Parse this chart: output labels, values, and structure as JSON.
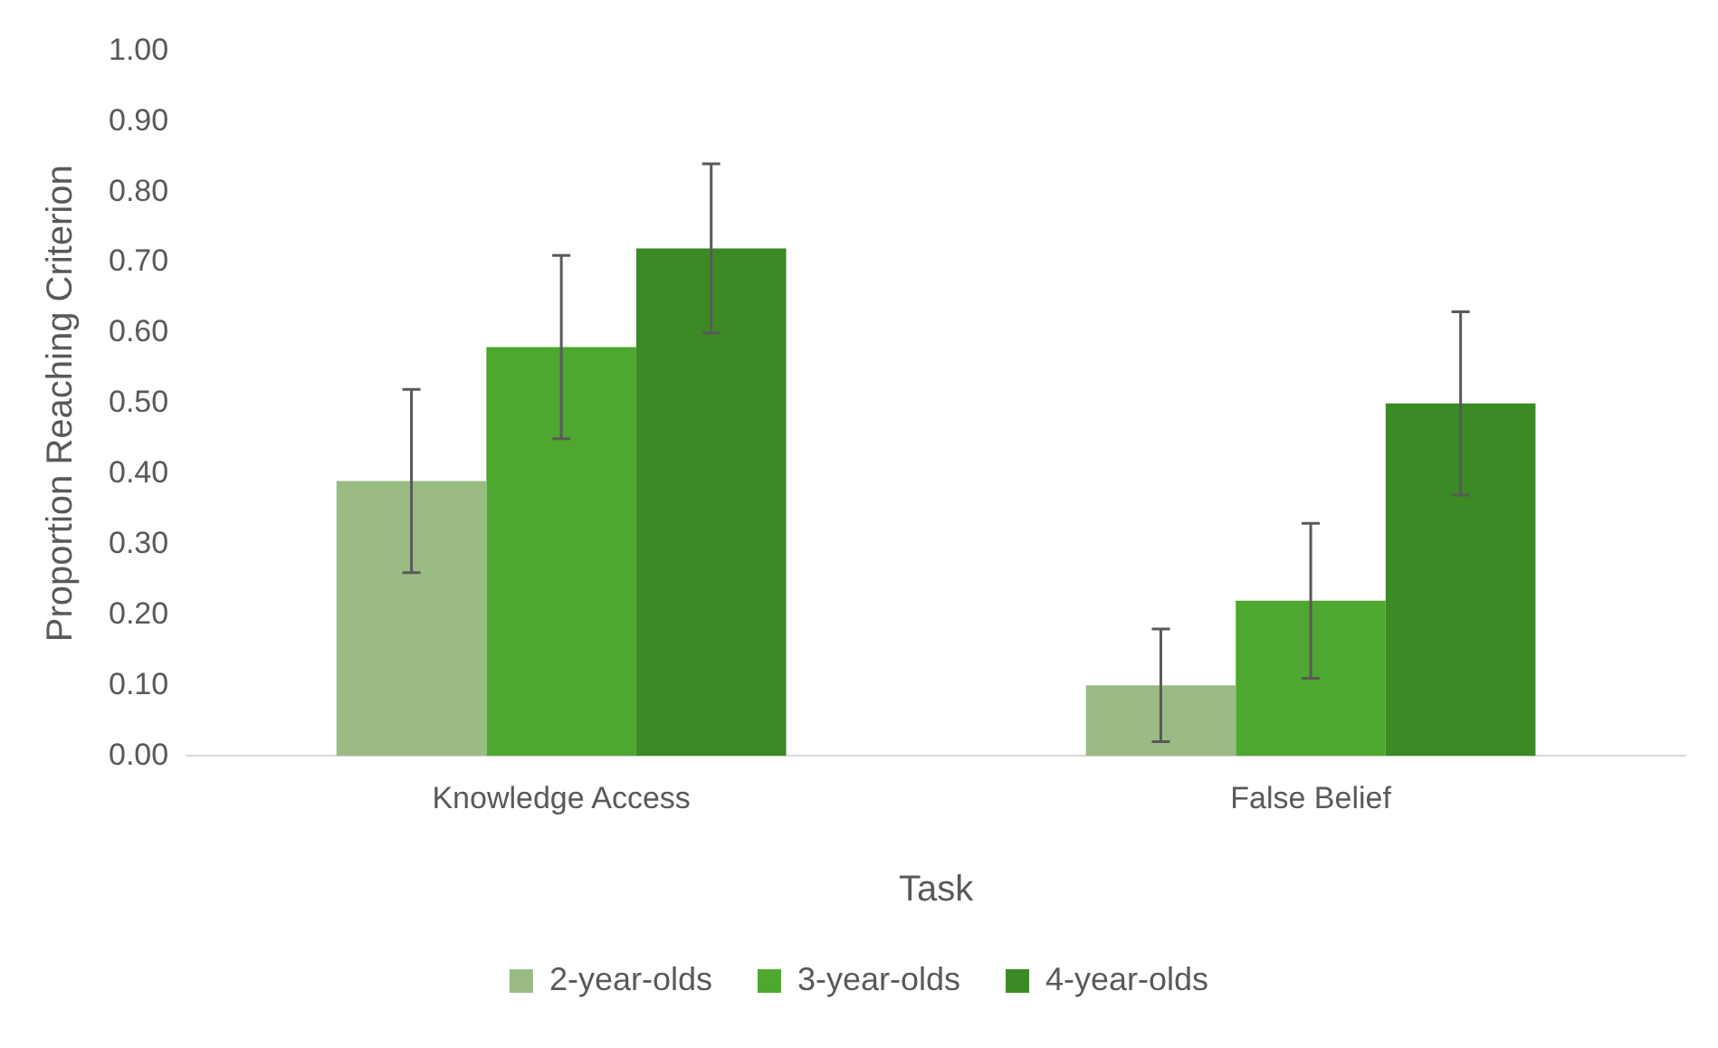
{
  "chart_data": {
    "type": "bar",
    "xlabel": "Task",
    "ylabel": "Proportion Reaching Criterion",
    "categories": [
      "Knowledge Access",
      "False Belief"
    ],
    "series": [
      {
        "name": "2-year-olds",
        "color": "#9bbb85",
        "values": [
          0.39,
          0.1
        ],
        "errors": [
          0.13,
          0.08
        ]
      },
      {
        "name": "3-year-olds",
        "color": "#4ea72e",
        "values": [
          0.58,
          0.22
        ],
        "errors": [
          0.13,
          0.11
        ]
      },
      {
        "name": "4-year-olds",
        "color": "#3c8a25",
        "values": [
          0.72,
          0.5
        ],
        "errors": [
          0.12,
          0.13
        ]
      }
    ],
    "ylim": [
      0,
      1
    ],
    "yticks": [
      {
        "value": 0,
        "label": "0.00"
      },
      {
        "value": 0.1,
        "label": "0.10"
      },
      {
        "value": 0.2,
        "label": "0.20"
      },
      {
        "value": 0.3,
        "label": "0.30"
      },
      {
        "value": 0.4,
        "label": "0.40"
      },
      {
        "value": 0.5,
        "label": "0.50"
      },
      {
        "value": 0.6,
        "label": "0.60"
      },
      {
        "value": 0.7,
        "label": "0.70"
      },
      {
        "value": 0.8,
        "label": "0.80"
      },
      {
        "value": 0.9,
        "label": "0.90"
      },
      {
        "value": 1,
        "label": "1.00"
      }
    ],
    "grid": false,
    "legend": "bottom"
  }
}
